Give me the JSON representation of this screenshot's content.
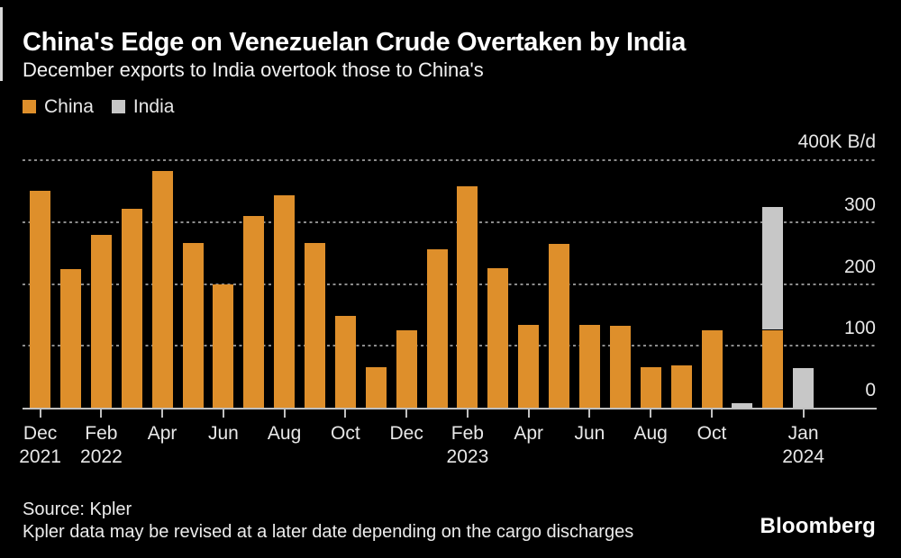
{
  "header": {
    "title": "China's Edge on Venezuelan Crude Overtaken by India",
    "subtitle": "December exports to India overtook those to China's"
  },
  "legend": [
    {
      "label": "China",
      "color": "#de8f2b"
    },
    {
      "label": "India",
      "color": "#c7c7c7"
    }
  ],
  "chart_data": {
    "type": "bar",
    "stacked": true,
    "title": "China's Edge on Venezuelan Crude Overtaken by India",
    "subtitle": "December exports to India overtook those to China's",
    "unit_label": "400K B/d",
    "ylabel": "K B/d",
    "ylim": [
      0,
      400
    ],
    "grid": "horizontal-dotted",
    "legend_position": "top-left",
    "yticks": [
      {
        "value": 0,
        "label": "0"
      },
      {
        "value": 100,
        "label": "100"
      },
      {
        "value": 200,
        "label": "200"
      },
      {
        "value": 300,
        "label": "300"
      },
      {
        "value": 400,
        "label": ""
      }
    ],
    "categories": [
      "Dec 2021",
      "Jan 2022",
      "Feb 2022",
      "Mar 2022",
      "Apr 2022",
      "May 2022",
      "Jun 2022",
      "Jul 2022",
      "Aug 2022",
      "Sep 2022",
      "Oct 2022",
      "Nov 2022",
      "Dec 2022",
      "Jan 2023",
      "Feb 2023",
      "Mar 2023",
      "Apr 2023",
      "May 2023",
      "Jun 2023",
      "Jul 2023",
      "Aug 2023",
      "Sep 2023",
      "Oct 2023",
      "Nov 2023",
      "Dec 2023",
      "Jan 2024"
    ],
    "series": [
      {
        "name": "China",
        "color": "#de8f2b",
        "values": [
          351,
          224,
          280,
          322,
          383,
          266,
          200,
          310,
          344,
          266,
          149,
          65,
          125,
          257,
          358,
          226,
          134,
          265,
          134,
          132,
          66,
          68,
          126,
          0,
          126,
          0
        ]
      },
      {
        "name": "India",
        "color": "#c7c7c7",
        "values": [
          0,
          0,
          0,
          0,
          0,
          0,
          0,
          0,
          0,
          0,
          0,
          0,
          0,
          0,
          0,
          0,
          0,
          0,
          0,
          0,
          0,
          0,
          0,
          8,
          199,
          64
        ]
      }
    ],
    "x_axis_ticks": [
      {
        "index": 0,
        "label": "Dec",
        "year": "2021"
      },
      {
        "index": 2,
        "label": "Feb",
        "year": "2022"
      },
      {
        "index": 4,
        "label": "Apr"
      },
      {
        "index": 6,
        "label": "Jun"
      },
      {
        "index": 8,
        "label": "Aug"
      },
      {
        "index": 10,
        "label": "Oct"
      },
      {
        "index": 12,
        "label": "Dec"
      },
      {
        "index": 14,
        "label": "Feb",
        "year": "2023"
      },
      {
        "index": 16,
        "label": "Apr"
      },
      {
        "index": 18,
        "label": "Jun"
      },
      {
        "index": 20,
        "label": "Aug"
      },
      {
        "index": 22,
        "label": "Oct"
      },
      {
        "index": 25,
        "label": "Jan",
        "year": "2024"
      }
    ]
  },
  "footer": {
    "source": "Source: Kpler",
    "note": "Kpler data may be revised at a later date depending on the cargo discharges",
    "brand": "Bloomberg"
  },
  "colors": {
    "background": "#000000",
    "china": "#de8f2b",
    "india": "#c7c7c7",
    "grid": "#8c8c8c",
    "axis": "#c0c0c0",
    "text": "#e8e8e8"
  }
}
